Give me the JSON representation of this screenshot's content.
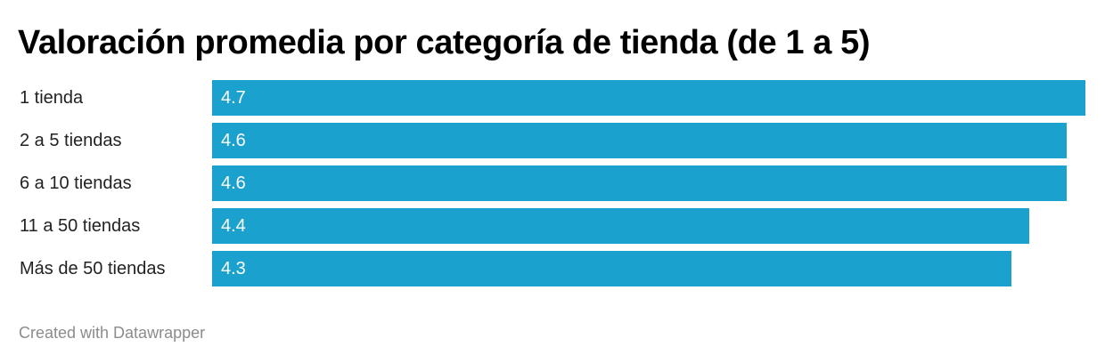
{
  "chart_data": {
    "type": "bar",
    "orientation": "horizontal",
    "title": "Valoración promedia por categoría de tienda (de 1 a 5)",
    "categories": [
      "1 tienda",
      "2 a 5 tiendas",
      "6 a 10 tiendas",
      "11 a 50 tiendas",
      "Más de 50 tiendas"
    ],
    "values": [
      4.7,
      4.6,
      4.6,
      4.4,
      4.3
    ],
    "value_labels": [
      "4.7",
      "4.6",
      "4.6",
      "4.4",
      "4.3"
    ],
    "xlim": [
      0,
      4.7
    ],
    "grid": false,
    "legend": "none",
    "bar_color": "#1ba1ce"
  },
  "footer": {
    "credit": "Created with Datawrapper"
  },
  "colors": {
    "bar": "#1ba1ce",
    "value_text": "#ffffff",
    "credit_text": "#8c8c8c"
  }
}
